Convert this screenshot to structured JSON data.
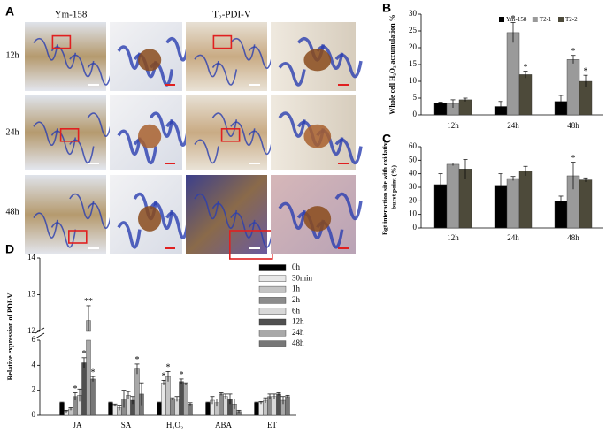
{
  "panel_a": {
    "label": "A",
    "columns": [
      "Ym-158",
      "T₂-PDI-V"
    ],
    "rows": [
      "12h",
      "24h",
      "48h"
    ]
  },
  "chart_data": [
    {
      "type": "bar",
      "label": "B",
      "ylabel": [
        "Whole cell H₂O₂ accumulation %"
      ],
      "categories": [
        "12h",
        "24h",
        "48h"
      ],
      "series": [
        {
          "name": "Ym-158",
          "color": "#000000",
          "values": [
            3.5,
            2.5,
            4
          ],
          "errors": [
            0.3,
            1.5,
            1.8
          ]
        },
        {
          "name": "T2-1",
          "color": "#9a9a9a",
          "values": [
            3.3,
            24.5,
            16.5
          ],
          "errors": [
            1.2,
            3,
            1.2
          ],
          "significance": [
            null,
            "*",
            "*"
          ]
        },
        {
          "name": "T2-2",
          "color": "#4d4a3a",
          "values": [
            4.5,
            12,
            10
          ],
          "errors": [
            0.5,
            1,
            1.8
          ],
          "significance": [
            null,
            "*",
            "*"
          ]
        }
      ],
      "ylim": [
        0,
        30
      ],
      "yticks": [
        0,
        5,
        10,
        15,
        20,
        25,
        30
      ],
      "legend": "top-right"
    },
    {
      "type": "bar",
      "label": "C",
      "ylabel": [
        "Bgt interaction site with oxidative",
        "burst point (%)"
      ],
      "categories": [
        "12h",
        "24h",
        "48h"
      ],
      "series": [
        {
          "color": "#000000",
          "values": [
            32,
            31.5,
            20
          ],
          "errors": [
            8,
            8.5,
            3.5
          ]
        },
        {
          "color": "#9a9a9a",
          "values": [
            47,
            36.5,
            38.5
          ],
          "errors": [
            1,
            1.5,
            10
          ],
          "significance": [
            null,
            null,
            "*"
          ]
        },
        {
          "color": "#4d4a3a",
          "values": [
            43.5,
            42,
            35.5
          ],
          "errors": [
            7,
            3.5,
            1.5
          ]
        }
      ],
      "ylim": [
        0,
        60
      ],
      "yticks": [
        0,
        10,
        20,
        30,
        40,
        50,
        60
      ]
    },
    {
      "type": "bar",
      "label": "D",
      "ylabel": [
        "Relative expression of PDI-V"
      ],
      "categories": [
        "JA",
        "SA",
        "H₂O₂",
        "ABA",
        "ET"
      ],
      "series": [
        {
          "name": "0h",
          "color": "#000000",
          "values": [
            1,
            1,
            1,
            1,
            1
          ],
          "errors": [
            0.05,
            0.05,
            0.05,
            0.05,
            0.05
          ]
        },
        {
          "name": "30min",
          "color": "#e8e8e8",
          "values": [
            0.3,
            0.8,
            2.6,
            1.2,
            1.0
          ],
          "errors": [
            0.1,
            0.1,
            0.2,
            0.3,
            0.1
          ],
          "significance": [
            null,
            null,
            "*",
            null,
            null
          ]
        },
        {
          "name": "1h",
          "color": "#c4c4c4",
          "values": [
            0.5,
            0.6,
            3.1,
            1.0,
            1.2
          ],
          "errors": [
            0.1,
            0.2,
            0.4,
            0.3,
            0.2
          ],
          "significance": [
            null,
            null,
            "*",
            null,
            null
          ]
        },
        {
          "name": "2h",
          "color": "#8c8c8c",
          "values": [
            1.5,
            1.3,
            1.3,
            1.7,
            1.5
          ],
          "errors": [
            0.3,
            0.7,
            0.1,
            0.1,
            0.2
          ],
          "significance": [
            "*",
            null,
            null,
            null,
            null
          ]
        },
        {
          "name": "6h",
          "color": "#d8d8d8",
          "values": [
            1.6,
            1.6,
            1.3,
            1.5,
            1.5
          ],
          "errors": [
            0.5,
            0.3,
            0.2,
            0.2,
            0.2
          ]
        },
        {
          "name": "12h",
          "color": "#505050",
          "values": [
            4.2,
            1.2,
            2.7,
            1.3,
            1.7
          ],
          "errors": [
            0.4,
            0.3,
            0.2,
            0.4,
            0.1
          ],
          "significance": [
            "*",
            null,
            "*",
            null,
            null
          ]
        },
        {
          "name": "24h",
          "color": "#a8a8a8",
          "values": [
            12.3,
            3.7,
            2.5,
            0.9,
            1.2
          ],
          "errors": [
            0.4,
            0.4,
            0.1,
            0.4,
            0.3
          ],
          "significance": [
            "**",
            "*",
            null,
            null,
            null
          ]
        },
        {
          "name": "48h",
          "color": "#777777",
          "values": [
            2.9,
            1.7,
            0.9,
            0.3,
            1.5
          ],
          "errors": [
            0.2,
            0.9,
            0.1,
            0.1,
            0.1
          ],
          "significance": [
            "*",
            null,
            null,
            null,
            null
          ]
        }
      ],
      "segments": [
        {
          "ylim": [
            0,
            6
          ],
          "yticks": [
            0,
            2,
            4,
            6
          ]
        },
        {
          "ylim": [
            12,
            14
          ],
          "yticks": [
            12,
            13,
            14
          ]
        }
      ],
      "legend": "top-right"
    }
  ]
}
